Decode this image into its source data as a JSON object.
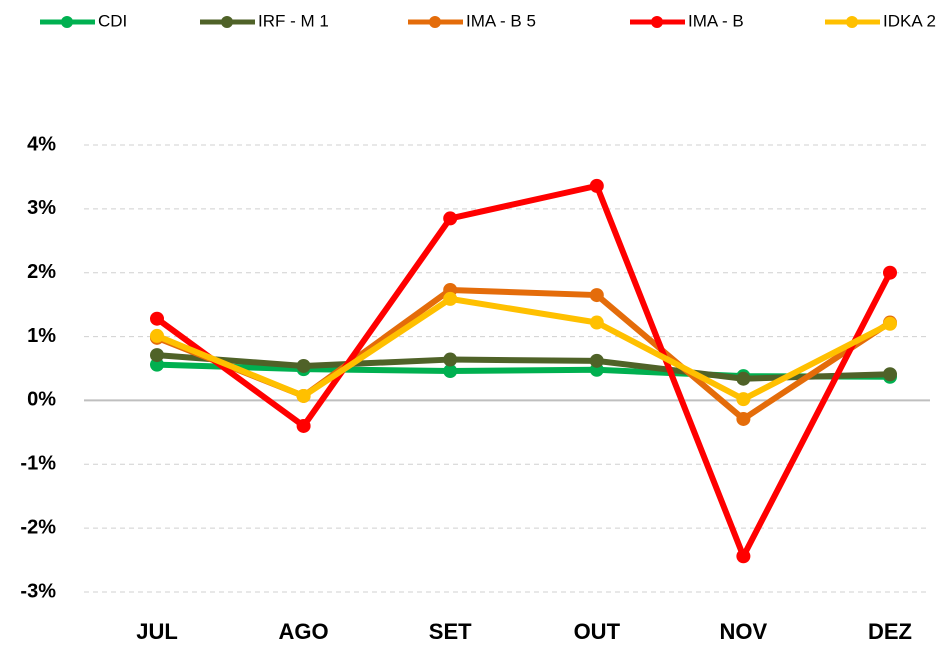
{
  "chart_data": {
    "type": "line",
    "categories": [
      "JUL",
      "AGO",
      "SET",
      "OUT",
      "NOV",
      "DEZ"
    ],
    "series": [
      {
        "name": "CDI",
        "color": "#00b050",
        "values": [
          0.56,
          0.49,
          0.46,
          0.48,
          0.38,
          0.37
        ]
      },
      {
        "name": "IRF - M 1",
        "color": "#4f6228",
        "values": [
          0.71,
          0.54,
          0.64,
          0.62,
          0.34,
          0.41
        ]
      },
      {
        "name": "IMA - B 5",
        "color": "#e46c0a",
        "values": [
          0.98,
          0.07,
          1.73,
          1.65,
          -0.29,
          1.22
        ]
      },
      {
        "name": "IMA - B",
        "color": "#ff0000",
        "values": [
          1.28,
          -0.4,
          2.85,
          3.36,
          -2.44,
          2.0
        ]
      },
      {
        "name": "IDKA 2",
        "color": "#ffc000",
        "values": [
          1.01,
          0.07,
          1.59,
          1.22,
          0.02,
          1.2
        ]
      }
    ],
    "ylim": [
      -3,
      4
    ],
    "yticks": [
      {
        "value": -3,
        "label": "-3%"
      },
      {
        "value": -2,
        "label": "-2%"
      },
      {
        "value": -1,
        "label": "-1%"
      },
      {
        "value": 0,
        "label": "0%"
      },
      {
        "value": 1,
        "label": "1%"
      },
      {
        "value": 2,
        "label": "2%"
      },
      {
        "value": 3,
        "label": "3%"
      },
      {
        "value": 4,
        "label": "4%"
      }
    ],
    "grid": true,
    "legend": "top"
  }
}
